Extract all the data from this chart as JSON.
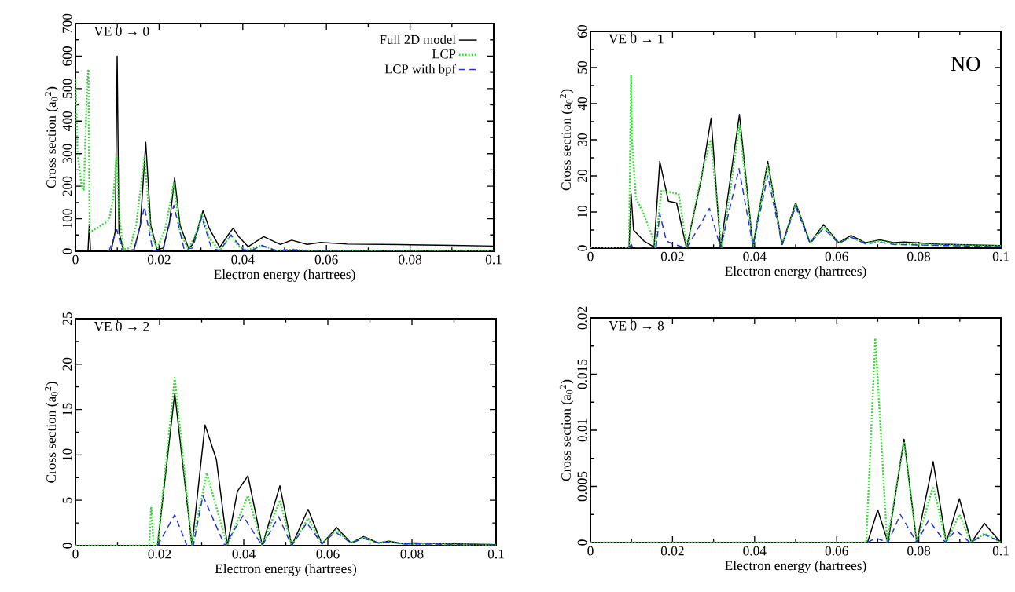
{
  "chart_data": [
    {
      "type": "line",
      "title": "VE 0 → 0",
      "xlabel": "Electron energy (hartrees)",
      "ylabel": "Cross section (a$_{0}$$^{2}$)",
      "xlim": [
        0,
        0.1
      ],
      "ylim": [
        0,
        700
      ],
      "xticks": [
        0,
        0.02,
        0.04,
        0.06,
        0.08,
        0.1
      ],
      "yticks": [
        0,
        100,
        200,
        300,
        400,
        500,
        600,
        700
      ],
      "legend": "top right",
      "grid": false,
      "marker": "none",
      "series": [
        {
          "name": "Full 2D model",
          "color": "#000000",
          "line_style": "solid",
          "x": [
            0,
            0.003,
            0.0033,
            0.0036,
            0.0085,
            0.0095,
            0.00997,
            0.0104,
            0.0115,
            0.014,
            0.0155,
            0.0168,
            0.018,
            0.0195,
            0.021,
            0.0225,
            0.0237,
            0.025,
            0.027,
            0.028,
            0.0295,
            0.0305,
            0.032,
            0.0345,
            0.0365,
            0.0377,
            0.039,
            0.0413,
            0.045,
            0.049,
            0.0517,
            0.0554,
            0.0586,
            0.065,
            0.08,
            0.09,
            0.1
          ],
          "values": [
            0,
            0,
            82,
            0,
            0,
            60,
            600,
            60,
            0,
            5,
            80,
            335,
            80,
            5,
            10,
            90,
            225,
            80,
            10,
            20,
            80,
            125,
            70,
            12,
            50,
            71,
            45,
            14,
            45,
            21,
            34,
            21,
            27,
            22,
            20,
            18,
            16
          ]
        },
        {
          "name": "LCP",
          "color": "#22e022",
          "line_style": "dotted",
          "x": [
            0,
            0.0005,
            0.0015,
            0.002,
            0.0028,
            0.0031,
            0.0034,
            0.005,
            0.008,
            0.009,
            0.0098,
            0.0105,
            0.0115,
            0.013,
            0.0145,
            0.0165,
            0.018,
            0.0195,
            0.0215,
            0.0235,
            0.025,
            0.027,
            0.029,
            0.0302,
            0.032,
            0.0345,
            0.036,
            0.0372,
            0.039,
            0.041,
            0.0445,
            0.048,
            0.052,
            0.056,
            0.1
          ],
          "values": [
            530,
            300,
            200,
            186,
            520,
            559,
            59,
            70,
            95,
            160,
            291,
            100,
            5,
            10,
            80,
            290,
            60,
            8,
            70,
            209,
            60,
            5,
            60,
            114,
            40,
            2,
            30,
            50,
            15,
            3,
            18,
            2,
            5,
            2,
            1
          ]
        },
        {
          "name": "LCP with bpf",
          "color": "#2233dd",
          "line_style": "dashed",
          "x": [
            0.008,
            0.0099,
            0.0112,
            0.014,
            0.0165,
            0.0185,
            0.021,
            0.0235,
            0.026,
            0.028,
            0.0302,
            0.0325,
            0.0345,
            0.0372,
            0.04,
            0.042,
            0.0445,
            0.048,
            0.0515,
            0.055,
            0.1
          ],
          "values": [
            0,
            66,
            0,
            0,
            136,
            2,
            5,
            141,
            5,
            10,
            105,
            10,
            2,
            50,
            5,
            2,
            18,
            2,
            5,
            2,
            0
          ]
        }
      ]
    },
    {
      "type": "line",
      "title": "VE 0 → 1",
      "xlabel": "Electron energy (hartrees)",
      "ylabel": "Cross section (a$_{0}$$^{2}$)",
      "annotations": [
        "NO"
      ],
      "xlim": [
        0,
        0.1
      ],
      "ylim": [
        0,
        60
      ],
      "xticks": [
        0,
        0.02,
        0.04,
        0.06,
        0.08,
        0.1
      ],
      "yticks": [
        0,
        10,
        20,
        30,
        40,
        50,
        60
      ],
      "grid": false,
      "marker": "none",
      "series": [
        {
          "color": "#000000",
          "line_style": "solid",
          "x": [
            0,
            0.0094,
            0.0099,
            0.0105,
            0.013,
            0.0155,
            0.0169,
            0.019,
            0.021,
            0.0234,
            0.027,
            0.0294,
            0.0317,
            0.0363,
            0.0396,
            0.0432,
            0.0467,
            0.05,
            0.0535,
            0.0568,
            0.0605,
            0.0635,
            0.067,
            0.0705,
            0.074,
            0.0765,
            0.085,
            0.1
          ],
          "values": [
            0,
            0,
            15,
            5,
            2,
            0.3,
            24,
            13,
            12.5,
            0,
            19,
            36,
            0,
            37,
            0.5,
            24,
            1,
            12.5,
            1.5,
            6.5,
            1.5,
            3.5,
            1.5,
            2.3,
            1.5,
            1.7,
            1.1,
            0.7
          ]
        },
        {
          "color": "#22e022",
          "line_style": "dotted",
          "x": [
            0,
            0.0094,
            0.0099,
            0.0101,
            0.0111,
            0.0126,
            0.0155,
            0.0158,
            0.0173,
            0.0215,
            0.0235,
            0.027,
            0.0293,
            0.032,
            0.0363,
            0.0396,
            0.0432,
            0.0467,
            0.05,
            0.0535,
            0.0568,
            0.0605,
            0.0635,
            0.067,
            0.0705,
            0.074,
            0.085,
            0.1
          ],
          "values": [
            0,
            0,
            48,
            30,
            13.7,
            10.5,
            2,
            0,
            16,
            15,
            0,
            20,
            30,
            0,
            34,
            0.5,
            23,
            1,
            12,
            1.5,
            6,
            1.5,
            3,
            1.3,
            2,
            1.2,
            0.9,
            0.6
          ]
        },
        {
          "color": "#2233dd",
          "line_style": "dashed",
          "x": [
            0.0095,
            0.0099,
            0.0105,
            0.016,
            0.0169,
            0.0185,
            0.02,
            0.0234,
            0.026,
            0.029,
            0.0317,
            0.0362,
            0.0396,
            0.0432,
            0.0467,
            0.05,
            0.0535,
            0.0568,
            0.0605,
            0.0635,
            0.067,
            0.0705,
            0.074,
            0.1
          ],
          "values": [
            0,
            1,
            0,
            0,
            9.5,
            2,
            1.2,
            0,
            5,
            11,
            0,
            22,
            0.5,
            20,
            1,
            11.5,
            1.3,
            5.5,
            1.3,
            3,
            1.2,
            1.6,
            1,
            0.4
          ]
        }
      ]
    },
    {
      "type": "line",
      "title": "VE 0 → 2",
      "xlabel": "Electron energy (hartrees)",
      "ylabel": "Cross section (a$_{0}$$^{2}$)",
      "xlim": [
        0,
        0.1
      ],
      "ylim": [
        0,
        25
      ],
      "xticks": [
        0,
        0.02,
        0.04,
        0.06,
        0.08,
        0.1
      ],
      "yticks": [
        0,
        5,
        10,
        15,
        20,
        25
      ],
      "grid": false,
      "marker": "none",
      "series": [
        {
          "color": "#000000",
          "line_style": "solid",
          "x": [
            0,
            0.0195,
            0.0236,
            0.0277,
            0.0308,
            0.0335,
            0.0361,
            0.0385,
            0.041,
            0.0444,
            0.0486,
            0.0514,
            0.0553,
            0.0586,
            0.0621,
            0.0655,
            0.0685,
            0.072,
            0.0745,
            0.078,
            0.0805,
            0.1
          ],
          "values": [
            0,
            0,
            16.8,
            0,
            13.3,
            9.5,
            0,
            6,
            7.7,
            0,
            6.6,
            0,
            4,
            0.2,
            2,
            0.3,
            1,
            0.3,
            0.5,
            0.2,
            0.3,
            0.1
          ]
        },
        {
          "color": "#22e022",
          "line_style": "dotted",
          "x": [
            0,
            0.0175,
            0.018,
            0.0186,
            0.0195,
            0.0236,
            0.0277,
            0.0312,
            0.0361,
            0.041,
            0.0444,
            0.0486,
            0.0514,
            0.0553,
            0.0586,
            0.062,
            0.0655,
            0.0685,
            0.072,
            0.0745,
            0.078,
            0.1
          ],
          "values": [
            0,
            0,
            4.3,
            0,
            0,
            18.5,
            0,
            8,
            0,
            5.5,
            0,
            5,
            0,
            3,
            0.2,
            1.7,
            0.3,
            0.9,
            0.3,
            0.5,
            0.2,
            0.1
          ]
        },
        {
          "color": "#2233dd",
          "line_style": "dashed",
          "x": [
            0.0195,
            0.0236,
            0.0265,
            0.028,
            0.0303,
            0.0355,
            0.0398,
            0.0444,
            0.0483,
            0.0514,
            0.055,
            0.0586,
            0.0618,
            0.0655,
            0.0685,
            0.072,
            0.0745,
            0.078,
            0.1
          ],
          "values": [
            0,
            3.4,
            0,
            0,
            5.5,
            0,
            3.3,
            0,
            3.2,
            0,
            2.5,
            0.2,
            1.5,
            0.3,
            0.8,
            0.3,
            0.4,
            0.2,
            0.1
          ]
        }
      ]
    },
    {
      "type": "line",
      "title": "VE 0 → 8",
      "xlabel": "Electron energy (hartrees)",
      "ylabel": "Cross section (a$_{0}$$^{2}$)",
      "xlim": [
        0,
        0.1
      ],
      "ylim": [
        0,
        0.02
      ],
      "xticks": [
        0,
        0.02,
        0.04,
        0.06,
        0.08,
        0.1
      ],
      "yticks": [
        0,
        0.005,
        0.01,
        0.015,
        0.02
      ],
      "grid": false,
      "marker": "none",
      "series": [
        {
          "color": "#000000",
          "line_style": "solid",
          "x": [
            0,
            0.0675,
            0.07,
            0.0725,
            0.0764,
            0.0795,
            0.0835,
            0.0867,
            0.0899,
            0.0928,
            0.096,
            0.1
          ],
          "values": [
            0,
            0,
            0.0029,
            0,
            0.0092,
            0,
            0.0072,
            0,
            0.0039,
            0,
            0.0017,
            0
          ]
        },
        {
          "color": "#22e022",
          "line_style": "dotted",
          "x": [
            0,
            0.0672,
            0.0694,
            0.0723,
            0.0764,
            0.0795,
            0.0835,
            0.0867,
            0.0899,
            0.0928,
            0.096,
            0.1
          ],
          "values": [
            0,
            0,
            0.0182,
            0,
            0.009,
            0,
            0.005,
            0,
            0.0025,
            0,
            0.0008,
            0
          ]
        },
        {
          "color": "#2233dd",
          "line_style": "dashed",
          "x": [
            0.0675,
            0.0695,
            0.0725,
            0.0755,
            0.0795,
            0.0824,
            0.0865,
            0.089,
            0.0925,
            0.096,
            0.1
          ],
          "values": [
            0,
            0.0004,
            0,
            0.0025,
            0,
            0.002,
            0,
            0.0011,
            0,
            0.0007,
            0.0001
          ]
        }
      ]
    }
  ]
}
